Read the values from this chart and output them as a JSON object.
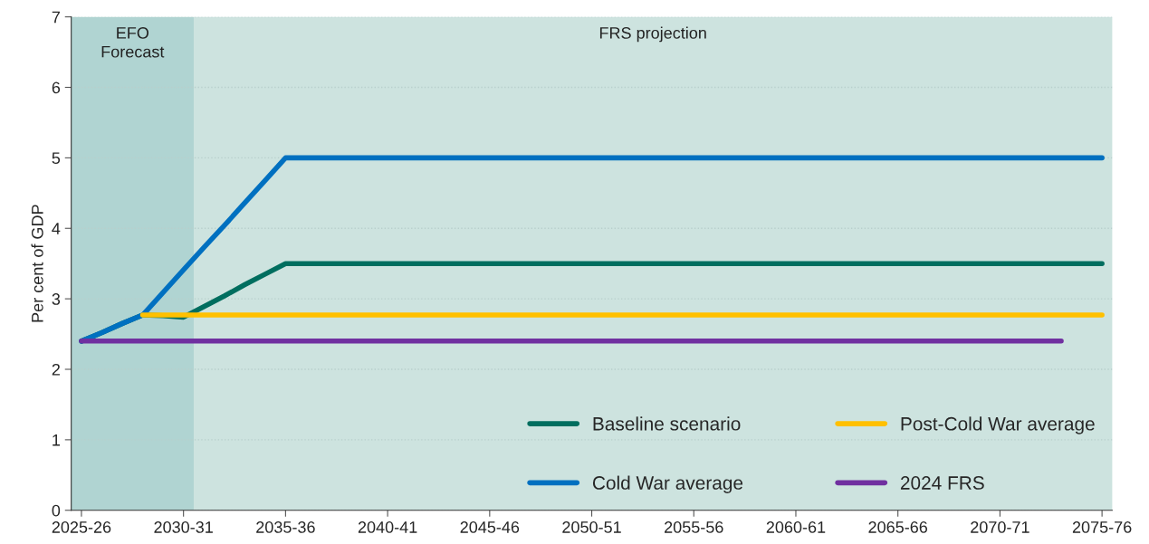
{
  "chart_data": {
    "type": "line",
    "ylabel": "Per cent of GDP",
    "categories": [
      "2025-26",
      null,
      null,
      null,
      null,
      "2030-31",
      null,
      null,
      null,
      null,
      "2035-36",
      null,
      null,
      null,
      null,
      "2040-41",
      null,
      null,
      null,
      null,
      "2045-46",
      null,
      null,
      null,
      null,
      "2050-51",
      null,
      null,
      null,
      null,
      "2055-56",
      null,
      null,
      null,
      null,
      "2060-61",
      null,
      null,
      null,
      null,
      "2065-66",
      null,
      null,
      null,
      null,
      "2070-71",
      null,
      null,
      null,
      null,
      "2075-76"
    ],
    "series": [
      {
        "name": "Baseline scenario",
        "color": "#006e5f",
        "values": [
          2.4,
          2.52,
          2.65,
          2.77,
          2.76,
          2.74,
          2.89,
          3.04,
          3.2,
          3.35,
          3.5,
          3.5,
          3.5,
          3.5,
          3.5,
          3.5,
          3.5,
          3.5,
          3.5,
          3.5,
          3.5,
          3.5,
          3.5,
          3.5,
          3.5,
          3.5,
          3.5,
          3.5,
          3.5,
          3.5,
          3.5,
          3.5,
          3.5,
          3.5,
          3.5,
          3.5,
          3.5,
          3.5,
          3.5,
          3.5,
          3.5,
          3.5,
          3.5,
          3.5,
          3.5,
          3.5,
          3.5,
          3.5,
          3.5,
          3.5,
          3.5
        ]
      },
      {
        "name": "Cold War average",
        "color": "#0070c0",
        "values": [
          2.4,
          2.52,
          2.65,
          2.77,
          3.09,
          3.41,
          3.73,
          4.04,
          4.36,
          4.68,
          5.0,
          5.0,
          5.0,
          5.0,
          5.0,
          5.0,
          5.0,
          5.0,
          5.0,
          5.0,
          5.0,
          5.0,
          5.0,
          5.0,
          5.0,
          5.0,
          5.0,
          5.0,
          5.0,
          5.0,
          5.0,
          5.0,
          5.0,
          5.0,
          5.0,
          5.0,
          5.0,
          5.0,
          5.0,
          5.0,
          5.0,
          5.0,
          5.0,
          5.0,
          5.0,
          5.0,
          5.0,
          5.0,
          5.0,
          5.0,
          5.0
        ]
      },
      {
        "name": "Post-Cold War average",
        "color": "#ffc000",
        "values": [
          null,
          null,
          null,
          2.77,
          2.77,
          2.77,
          2.77,
          2.77,
          2.77,
          2.77,
          2.77,
          2.77,
          2.77,
          2.77,
          2.77,
          2.77,
          2.77,
          2.77,
          2.77,
          2.77,
          2.77,
          2.77,
          2.77,
          2.77,
          2.77,
          2.77,
          2.77,
          2.77,
          2.77,
          2.77,
          2.77,
          2.77,
          2.77,
          2.77,
          2.77,
          2.77,
          2.77,
          2.77,
          2.77,
          2.77,
          2.77,
          2.77,
          2.77,
          2.77,
          2.77,
          2.77,
          2.77,
          2.77,
          2.77,
          2.77,
          2.77
        ]
      },
      {
        "name": "2024 FRS",
        "color": "#7030a0",
        "values": [
          2.4,
          2.4,
          2.4,
          2.4,
          2.4,
          2.4,
          2.4,
          2.4,
          2.4,
          2.4,
          2.4,
          2.4,
          2.4,
          2.4,
          2.4,
          2.4,
          2.4,
          2.4,
          2.4,
          2.4,
          2.4,
          2.4,
          2.4,
          2.4,
          2.4,
          2.4,
          2.4,
          2.4,
          2.4,
          2.4,
          2.4,
          2.4,
          2.4,
          2.4,
          2.4,
          2.4,
          2.4,
          2.4,
          2.4,
          2.4,
          2.4,
          2.4,
          2.4,
          2.4,
          2.4,
          2.4,
          2.4,
          2.4,
          2.4,
          null,
          null
        ]
      }
    ],
    "ylim": [
      0,
      7
    ],
    "yticks": [
      0,
      1,
      2,
      3,
      4,
      5,
      6,
      7
    ],
    "bands": [
      {
        "axis": "x",
        "from": "2025-26",
        "to": "2030-31",
        "label": "EFO\nForecast",
        "color": "#b0d4d2"
      }
    ],
    "annotations": [
      "FRS projection"
    ],
    "grid": "y",
    "legend": "bottom right",
    "marker": "none",
    "line_style": "solid"
  }
}
